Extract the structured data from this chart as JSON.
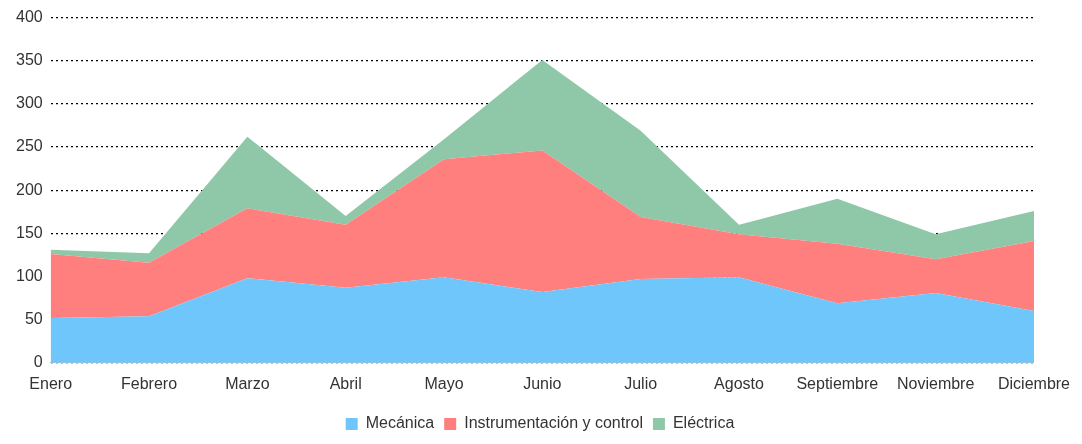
{
  "chart_data": {
    "type": "area",
    "stacked": true,
    "categories": [
      "Enero",
      "Febrero",
      "Marzo",
      "Abril",
      "Mayo",
      "Junio",
      "Julio",
      "Agosto",
      "Septiembre",
      "Noviembre",
      "Diciembre"
    ],
    "series": [
      {
        "name": "Mecánica",
        "color": "#6ec6fa",
        "values": [
          52,
          54,
          98,
          87,
          99,
          82,
          97,
          99,
          69,
          81,
          60
        ]
      },
      {
        "name": "Instrumentación y control",
        "color": "#ff7f7f",
        "values": [
          74,
          62,
          81,
          73,
          137,
          164,
          72,
          50,
          69,
          39,
          81
        ]
      },
      {
        "name": "Eléctrica",
        "color": "#8fc8a8",
        "values": [
          5,
          11,
          83,
          10,
          23,
          105,
          100,
          11,
          52,
          29,
          35
        ]
      }
    ],
    "ylim": [
      0,
      400
    ],
    "yticks": [
      0,
      50,
      100,
      150,
      200,
      250,
      300,
      350,
      400
    ],
    "grid": "y",
    "legend": "bottom"
  }
}
